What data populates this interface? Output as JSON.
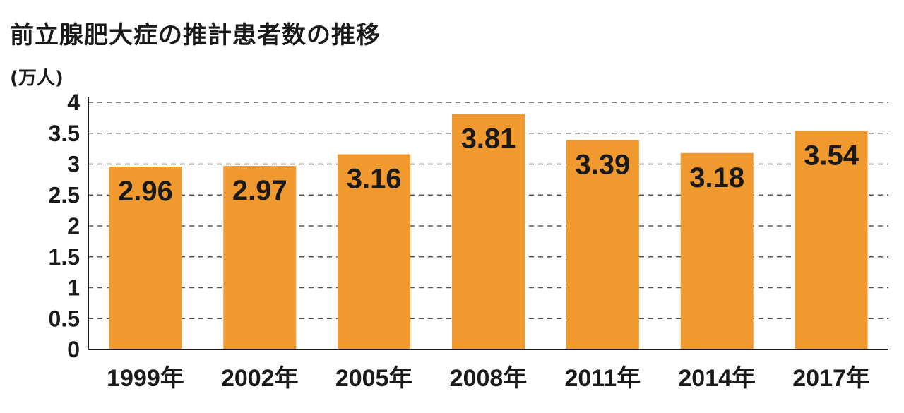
{
  "chart_data": {
    "type": "bar",
    "title": "前立腺肥大症の推計患者数の推移",
    "ylabel": "(万人)",
    "xlabel": "",
    "categories": [
      "1999年",
      "2002年",
      "2005年",
      "2008年",
      "2011年",
      "2014年",
      "2017年"
    ],
    "values": [
      2.96,
      2.97,
      3.16,
      3.81,
      3.39,
      3.18,
      3.54
    ],
    "data_labels": [
      "2.96",
      "2.97",
      "3.16",
      "3.81",
      "3.39",
      "3.18",
      "3.54"
    ],
    "ylim": [
      0,
      4
    ],
    "yticks": [
      0,
      0.5,
      1,
      1.5,
      2,
      2.5,
      3,
      3.5,
      4
    ],
    "ytick_labels": [
      "0",
      "0.5",
      "1",
      "1.5",
      "2",
      "2.5",
      "3",
      "3.5",
      "4"
    ],
    "grid": "dashed horizontal",
    "bar_color": "#F0992F",
    "legend": "none"
  }
}
